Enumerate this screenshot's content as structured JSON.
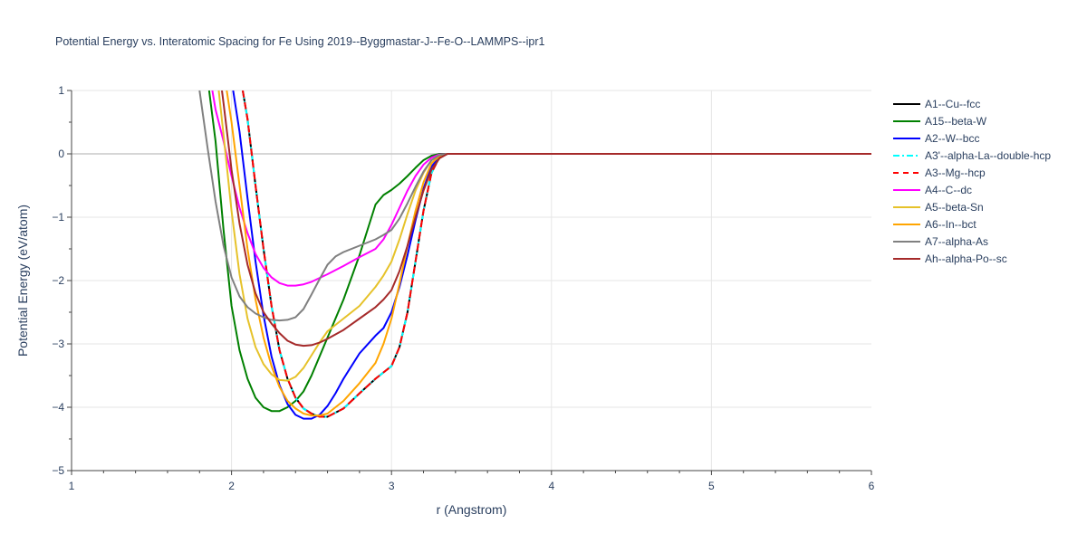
{
  "chart_data": {
    "type": "line",
    "title": "Potential Energy vs. Interatomic Spacing for Fe Using 2019--Byggmastar-J--Fe-O--LAMMPS--ipr1",
    "xlabel": "r (Angstrom)",
    "ylabel": "Potential Energy (eV/atom)",
    "xlim": [
      1,
      6
    ],
    "ylim": [
      -5,
      1
    ],
    "xticks": [
      1,
      2,
      3,
      4,
      5,
      6
    ],
    "yticks": [
      1,
      0,
      -1,
      -2,
      -3,
      -4,
      -5
    ],
    "ytick_labels": [
      "1",
      "0",
      "−1",
      "−2",
      "−3",
      "−4",
      "−5"
    ],
    "grid": true,
    "legend_position": "right",
    "series": [
      {
        "name": "A1--Cu--fcc",
        "color": "#000000",
        "dash": "solid",
        "x": [
          2.07,
          2.1,
          2.15,
          2.2,
          2.25,
          2.3,
          2.35,
          2.4,
          2.45,
          2.5,
          2.55,
          2.6,
          2.7,
          2.8,
          2.9,
          3.0,
          3.05,
          3.1,
          3.15,
          3.2,
          3.25,
          3.3,
          3.35,
          3.4,
          3.5,
          4.0,
          5.0,
          6.0
        ],
        "y": [
          1.0,
          0.55,
          -0.5,
          -1.5,
          -2.4,
          -3.1,
          -3.55,
          -3.85,
          -4.02,
          -4.1,
          -4.15,
          -4.15,
          -4.02,
          -3.78,
          -3.55,
          -3.35,
          -3.05,
          -2.5,
          -1.7,
          -0.9,
          -0.3,
          -0.05,
          0.0,
          0.0,
          0.0,
          0.0,
          0.0,
          0.0
        ]
      },
      {
        "name": "A15--beta-W",
        "color": "#008000",
        "dash": "solid",
        "x": [
          1.86,
          1.9,
          1.95,
          2.0,
          2.05,
          2.1,
          2.15,
          2.2,
          2.25,
          2.3,
          2.35,
          2.4,
          2.45,
          2.5,
          2.6,
          2.7,
          2.8,
          2.85,
          2.9,
          2.95,
          3.0,
          3.05,
          3.1,
          3.15,
          3.2,
          3.25,
          3.3,
          3.35,
          3.4,
          3.5,
          4.0,
          5.0,
          6.0
        ],
        "y": [
          1.0,
          0.2,
          -1.2,
          -2.4,
          -3.1,
          -3.55,
          -3.85,
          -4.0,
          -4.06,
          -4.06,
          -4.0,
          -3.9,
          -3.75,
          -3.5,
          -2.9,
          -2.3,
          -1.6,
          -1.2,
          -0.8,
          -0.65,
          -0.57,
          -0.47,
          -0.35,
          -0.22,
          -0.1,
          -0.03,
          0.0,
          0.0,
          0.0,
          0.0,
          0.0,
          0.0,
          0.0
        ]
      },
      {
        "name": "A2--W--bcc",
        "color": "#0000ff",
        "dash": "solid",
        "x": [
          2.01,
          2.05,
          2.1,
          2.15,
          2.2,
          2.25,
          2.3,
          2.35,
          2.4,
          2.45,
          2.5,
          2.55,
          2.6,
          2.65,
          2.7,
          2.8,
          2.9,
          2.95,
          3.0,
          3.05,
          3.1,
          3.15,
          3.2,
          3.25,
          3.3,
          3.35,
          3.4,
          3.5,
          4.0,
          5.0,
          6.0
        ],
        "y": [
          1.0,
          0.35,
          -0.7,
          -1.7,
          -2.55,
          -3.2,
          -3.65,
          -3.95,
          -4.12,
          -4.18,
          -4.18,
          -4.12,
          -3.98,
          -3.78,
          -3.55,
          -3.15,
          -2.87,
          -2.75,
          -2.5,
          -2.1,
          -1.6,
          -1.05,
          -0.55,
          -0.2,
          -0.05,
          0.0,
          0.0,
          0.0,
          0.0,
          0.0,
          0.0
        ]
      },
      {
        "name": "A3'--alpha-La--double-hcp",
        "color": "#00ffff",
        "dash": "dashdot",
        "x": [
          2.07,
          2.1,
          2.15,
          2.2,
          2.25,
          2.3,
          2.35,
          2.4,
          2.45,
          2.5,
          2.55,
          2.6,
          2.7,
          2.8,
          2.9,
          3.0,
          3.05,
          3.1,
          3.15,
          3.2,
          3.25,
          3.3,
          3.35,
          3.4,
          3.5,
          4.0,
          5.0,
          6.0
        ],
        "y": [
          1.0,
          0.55,
          -0.5,
          -1.5,
          -2.4,
          -3.1,
          -3.55,
          -3.85,
          -4.02,
          -4.1,
          -4.15,
          -4.15,
          -4.02,
          -3.78,
          -3.55,
          -3.35,
          -3.05,
          -2.5,
          -1.7,
          -0.9,
          -0.3,
          -0.05,
          0.0,
          0.0,
          0.0,
          0.0,
          0.0,
          0.0
        ]
      },
      {
        "name": "A3--Mg--hcp",
        "color": "#ff0000",
        "dash": "dash",
        "x": [
          2.07,
          2.1,
          2.15,
          2.2,
          2.25,
          2.3,
          2.35,
          2.4,
          2.45,
          2.5,
          2.55,
          2.6,
          2.7,
          2.8,
          2.9,
          3.0,
          3.05,
          3.1,
          3.15,
          3.2,
          3.25,
          3.3,
          3.35,
          3.4,
          3.5,
          4.0,
          5.0,
          6.0
        ],
        "y": [
          1.0,
          0.55,
          -0.5,
          -1.5,
          -2.4,
          -3.1,
          -3.55,
          -3.85,
          -4.02,
          -4.1,
          -4.15,
          -4.15,
          -4.02,
          -3.78,
          -3.55,
          -3.35,
          -3.05,
          -2.5,
          -1.7,
          -0.9,
          -0.3,
          -0.05,
          0.0,
          0.0,
          0.0,
          0.0,
          0.0,
          0.0
        ]
      },
      {
        "name": "A4--C--dc",
        "color": "#ff00ff",
        "dash": "solid",
        "x": [
          1.88,
          1.9,
          1.95,
          2.0,
          2.05,
          2.1,
          2.15,
          2.2,
          2.25,
          2.3,
          2.35,
          2.4,
          2.45,
          2.5,
          2.6,
          2.7,
          2.8,
          2.9,
          2.95,
          3.0,
          3.05,
          3.1,
          3.15,
          3.2,
          3.25,
          3.3,
          3.35,
          3.4,
          3.5,
          4.0,
          5.0,
          6.0
        ],
        "y": [
          1.0,
          0.7,
          0.2,
          -0.35,
          -0.85,
          -1.25,
          -1.58,
          -1.8,
          -1.95,
          -2.04,
          -2.08,
          -2.08,
          -2.06,
          -2.02,
          -1.9,
          -1.77,
          -1.63,
          -1.5,
          -1.35,
          -1.12,
          -0.85,
          -0.58,
          -0.35,
          -0.17,
          -0.06,
          -0.01,
          0.0,
          0.0,
          0.0,
          0.0,
          0.0,
          0.0
        ]
      },
      {
        "name": "A5--beta-Sn",
        "color": "#e6c22a",
        "dash": "solid",
        "x": [
          1.92,
          1.95,
          2.0,
          2.05,
          2.1,
          2.15,
          2.2,
          2.25,
          2.3,
          2.35,
          2.4,
          2.45,
          2.5,
          2.55,
          2.6,
          2.7,
          2.8,
          2.9,
          2.95,
          3.0,
          3.05,
          3.1,
          3.15,
          3.2,
          3.25,
          3.3,
          3.35,
          3.4,
          3.5,
          4.0,
          5.0,
          6.0
        ],
        "y": [
          1.0,
          0.3,
          -0.9,
          -1.9,
          -2.6,
          -3.05,
          -3.32,
          -3.48,
          -3.57,
          -3.58,
          -3.52,
          -3.38,
          -3.18,
          -2.98,
          -2.8,
          -2.6,
          -2.4,
          -2.1,
          -1.92,
          -1.7,
          -1.35,
          -0.95,
          -0.58,
          -0.3,
          -0.1,
          -0.02,
          0.0,
          0.0,
          0.0,
          0.0,
          0.0,
          0.0
        ]
      },
      {
        "name": "A6--In--bct",
        "color": "#ffa500",
        "dash": "solid",
        "x": [
          1.97,
          2.0,
          2.05,
          2.1,
          2.15,
          2.2,
          2.25,
          2.3,
          2.35,
          2.4,
          2.45,
          2.5,
          2.55,
          2.6,
          2.7,
          2.8,
          2.9,
          2.95,
          3.0,
          3.05,
          3.1,
          3.15,
          3.2,
          3.25,
          3.3,
          3.35,
          3.4,
          3.5,
          4.0,
          5.0,
          6.0
        ],
        "y": [
          1.0,
          0.5,
          -0.5,
          -1.5,
          -2.3,
          -2.9,
          -3.35,
          -3.68,
          -3.9,
          -4.02,
          -4.1,
          -4.13,
          -4.13,
          -4.1,
          -3.9,
          -3.62,
          -3.3,
          -3.0,
          -2.6,
          -2.05,
          -1.45,
          -0.9,
          -0.45,
          -0.15,
          -0.03,
          0.0,
          0.0,
          0.0,
          0.0,
          0.0,
          0.0
        ]
      },
      {
        "name": "A7--alpha-As",
        "color": "#808080",
        "dash": "solid",
        "x": [
          1.8,
          1.85,
          1.9,
          1.95,
          2.0,
          2.05,
          2.1,
          2.15,
          2.2,
          2.25,
          2.3,
          2.35,
          2.4,
          2.45,
          2.5,
          2.55,
          2.6,
          2.65,
          2.7,
          2.8,
          2.9,
          2.95,
          3.0,
          3.05,
          3.1,
          3.15,
          3.2,
          3.25,
          3.3,
          3.35,
          3.4,
          3.5,
          4.0,
          5.0,
          6.0
        ],
        "y": [
          1.0,
          0.1,
          -0.75,
          -1.45,
          -1.95,
          -2.25,
          -2.42,
          -2.52,
          -2.58,
          -2.62,
          -2.63,
          -2.62,
          -2.58,
          -2.45,
          -2.22,
          -1.98,
          -1.75,
          -1.62,
          -1.55,
          -1.45,
          -1.35,
          -1.28,
          -1.2,
          -1.02,
          -0.78,
          -0.52,
          -0.28,
          -0.1,
          -0.02,
          0.0,
          0.0,
          0.0,
          0.0,
          0.0,
          0.0
        ]
      },
      {
        "name": "Ah--alpha-Po--sc",
        "color": "#a52a2a",
        "dash": "solid",
        "x": [
          1.94,
          1.95,
          2.0,
          2.05,
          2.1,
          2.15,
          2.2,
          2.25,
          2.3,
          2.35,
          2.4,
          2.45,
          2.5,
          2.55,
          2.6,
          2.7,
          2.8,
          2.9,
          2.95,
          3.0,
          3.05,
          3.1,
          3.15,
          3.2,
          3.25,
          3.3,
          3.35,
          3.4,
          3.5,
          4.0,
          5.0,
          6.0
        ],
        "y": [
          1.0,
          0.8,
          -0.25,
          -1.1,
          -1.75,
          -2.2,
          -2.5,
          -2.68,
          -2.83,
          -2.95,
          -3.01,
          -3.03,
          -3.02,
          -2.98,
          -2.92,
          -2.78,
          -2.6,
          -2.42,
          -2.3,
          -2.15,
          -1.85,
          -1.45,
          -1.0,
          -0.58,
          -0.25,
          -0.07,
          0.0,
          0.0,
          0.0,
          0.0,
          0.0,
          0.0
        ]
      }
    ]
  }
}
